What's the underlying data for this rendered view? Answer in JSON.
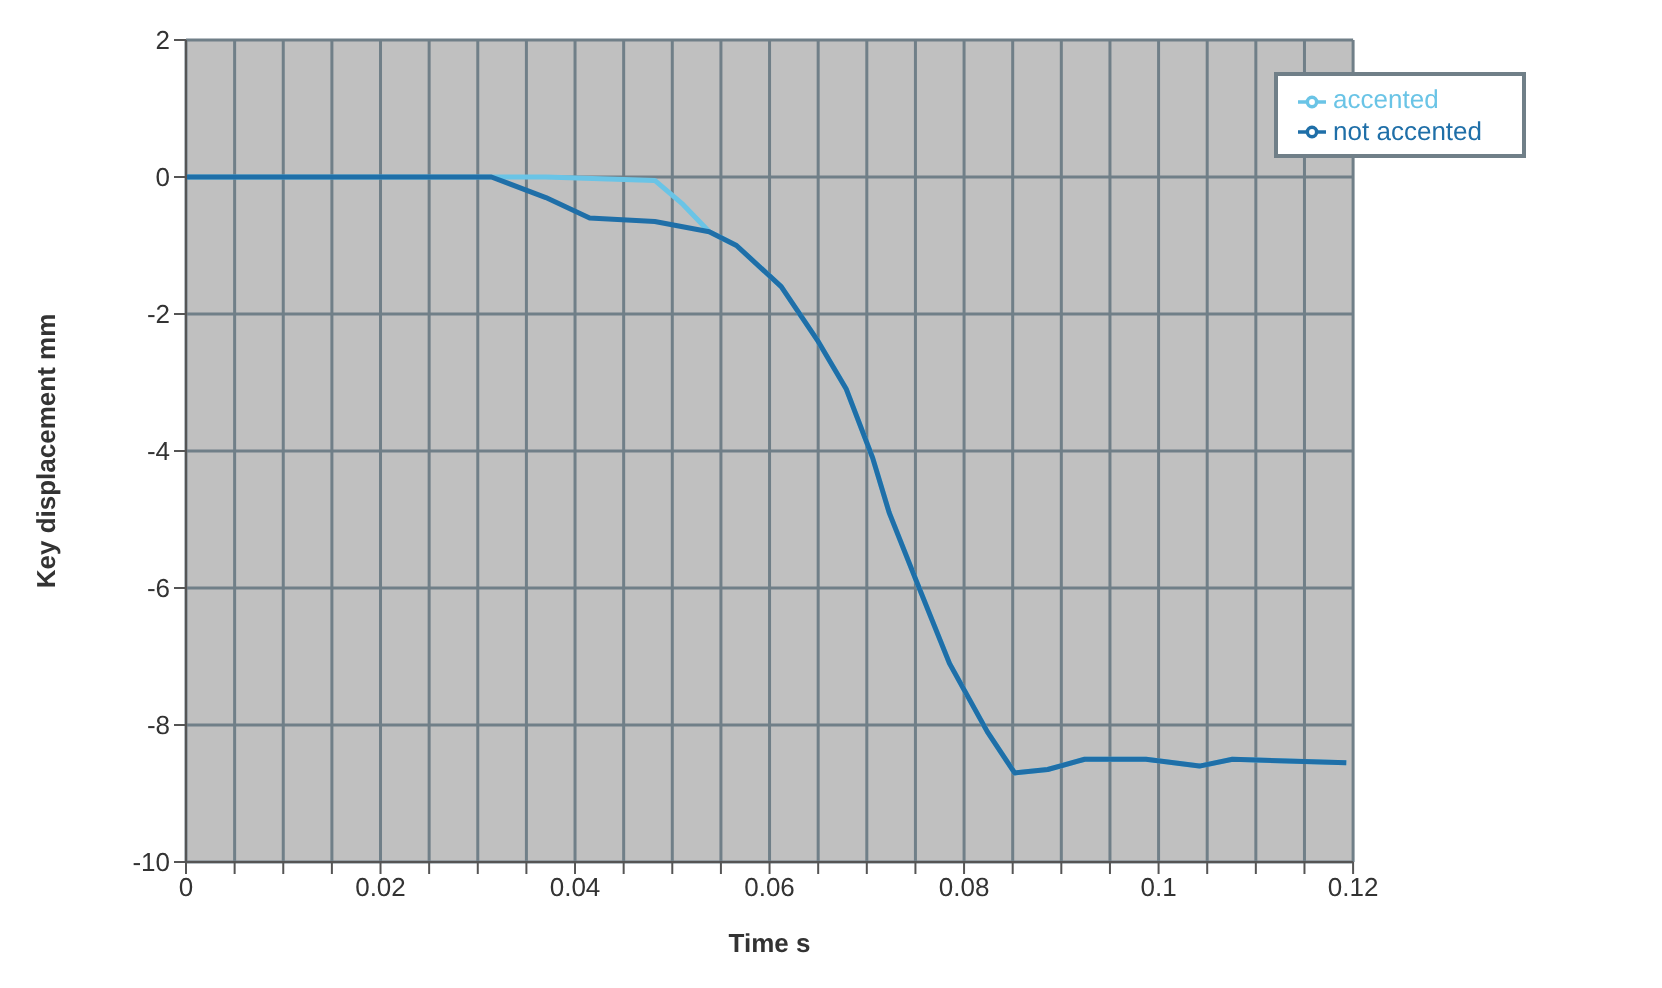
{
  "chart_data": {
    "type": "line",
    "xlabel": "Time s",
    "ylabel": "Key displacement mm",
    "xlim": [
      0,
      0.12
    ],
    "ylim": [
      -10,
      2
    ],
    "xticks": [
      0,
      {
        "value": 0.005,
        "label": null
      },
      {
        "value": 0.01,
        "label": null
      },
      {
        "value": 0.015,
        "label": null
      },
      0.02,
      {
        "value": 0.025,
        "label": null
      },
      {
        "value": 0.03,
        "label": null
      },
      {
        "value": 0.035,
        "label": null
      },
      0.04,
      {
        "value": 0.045,
        "label": null
      },
      {
        "value": 0.05,
        "label": null
      },
      {
        "value": 0.055,
        "label": null
      },
      0.06,
      {
        "value": 0.065,
        "label": null
      },
      {
        "value": 0.07,
        "label": null
      },
      {
        "value": 0.075,
        "label": null
      },
      0.08,
      {
        "value": 0.085,
        "label": null
      },
      {
        "value": 0.09,
        "label": null
      },
      {
        "value": 0.095,
        "label": null
      },
      0.1,
      {
        "value": 0.105,
        "label": null
      },
      {
        "value": 0.11,
        "label": null
      },
      {
        "value": 0.115,
        "label": null
      },
      0.12
    ],
    "yticks": [
      -10,
      -8,
      -6,
      -4,
      -2,
      0,
      2
    ],
    "grid": true,
    "legend": "top right",
    "marker": "none",
    "line_style": "solid",
    "series": [
      {
        "name": "accented",
        "color": "#6ac4e6",
        "x": [
          0,
          0.0314,
          0.037,
          0.0482,
          0.0511,
          0.0538,
          0.0566,
          0.0612,
          0.065,
          0.0679,
          0.0706,
          0.0723,
          0.0751,
          0.0785,
          0.0824,
          0.0852,
          0.0886,
          0.0924,
          0.0987,
          0.1042,
          0.1076,
          0.1193
        ],
        "values": [
          0,
          0,
          0,
          -0.05,
          -0.4,
          -0.8,
          -1.0,
          -1.6,
          -2.4,
          -3.1,
          -4.1,
          -4.9,
          -5.9,
          -7.1,
          -8.1,
          -8.7,
          -8.65,
          -8.5,
          -8.5,
          -8.6,
          -8.5,
          -8.55
        ]
      },
      {
        "name": "not accented",
        "color": "#1f6fa8",
        "x": [
          0,
          0.0314,
          0.037,
          0.0415,
          0.0482,
          0.0538,
          0.0566,
          0.0612,
          0.065,
          0.0679,
          0.0706,
          0.0723,
          0.0751,
          0.0785,
          0.0824,
          0.0852,
          0.0886,
          0.0924,
          0.0987,
          0.1042,
          0.1076,
          0.1193
        ],
        "values": [
          0,
          0,
          -0.3,
          -0.6,
          -0.65,
          -0.8,
          -1.0,
          -1.6,
          -2.4,
          -3.1,
          -4.1,
          -4.9,
          -5.9,
          -7.1,
          -8.1,
          -8.7,
          -8.65,
          -8.5,
          -8.5,
          -8.6,
          -8.5,
          -8.55
        ]
      }
    ]
  }
}
